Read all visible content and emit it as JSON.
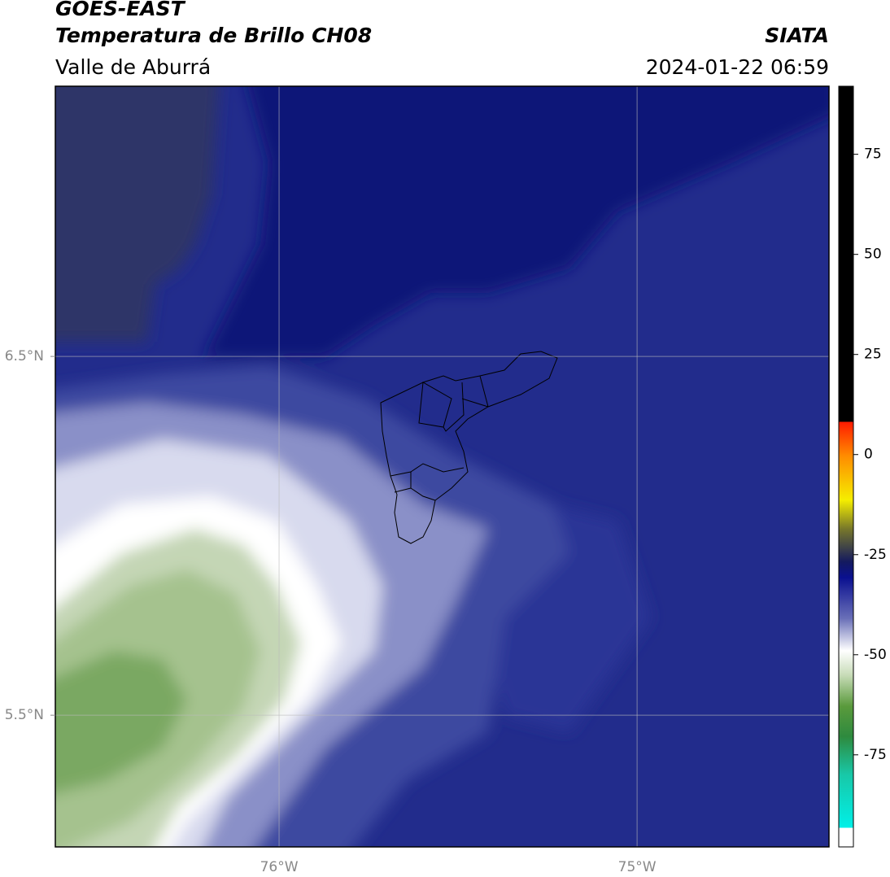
{
  "chart_data": {
    "type": "map",
    "title": "GOES-EAST",
    "subtitle": "Temperatura de Brillo CH08",
    "region": "Valle de Aburrá",
    "source": "SIATA",
    "datetime": "2024-01-22 06:59",
    "xlim": [
      -76.625,
      -74.464
    ],
    "ylim": [
      5.133,
      7.253
    ],
    "xticks": [
      {
        "value": -76,
        "label": "76°W"
      },
      {
        "value": -75,
        "label": "75°W"
      }
    ],
    "yticks": [
      {
        "value": 6.5,
        "label": "6.5°N"
      },
      {
        "value": 5.5,
        "label": "5.5°N"
      }
    ],
    "grid": true,
    "colorbar": {
      "lim": [
        -98,
        92
      ],
      "ticks": [
        75,
        50,
        25,
        0,
        -25,
        -50,
        -75
      ]
    }
  }
}
